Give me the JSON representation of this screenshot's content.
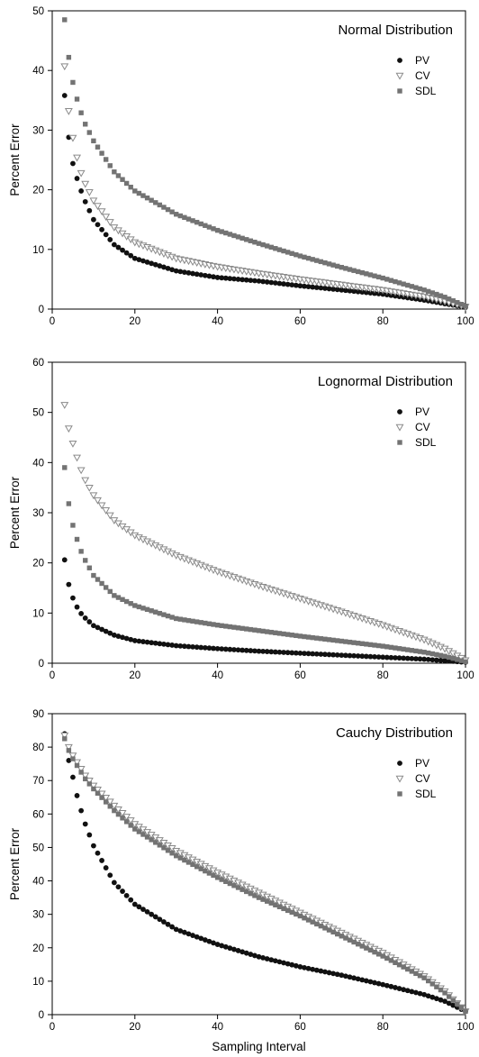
{
  "figure": {
    "xlabel": "Sampling Interval"
  },
  "legend_labels": [
    "PV",
    "CV",
    "SDL"
  ],
  "chart_data": [
    {
      "type": "scatter",
      "title": "Normal Distribution",
      "xlabel": "",
      "ylabel": "Percent Error",
      "xlim": [
        0,
        100
      ],
      "ylim": [
        0,
        50
      ],
      "x_ticks": [
        0,
        20,
        40,
        60,
        80,
        100
      ],
      "y_ticks": [
        0,
        10,
        20,
        30,
        40,
        50
      ],
      "legend_position": "top-right",
      "series": [
        {
          "name": "PV",
          "marker": "circle",
          "color": "#111111",
          "x": [
            3,
            4,
            5,
            6,
            7,
            8,
            10,
            15,
            20,
            30,
            40,
            50,
            60,
            70,
            80,
            90,
            95,
            100
          ],
          "y": [
            35.8,
            28.8,
            24.4,
            21.9,
            19.8,
            18.0,
            15.0,
            10.8,
            8.5,
            6.4,
            5.3,
            4.7,
            3.9,
            3.2,
            2.5,
            1.5,
            0.9,
            0.3
          ]
        },
        {
          "name": "CV",
          "marker": "triangle-down",
          "color": "#8a8a8a",
          "x": [
            3,
            4,
            5,
            6,
            7,
            8,
            10,
            15,
            20,
            30,
            40,
            50,
            60,
            70,
            80,
            90,
            95,
            100
          ],
          "y": [
            40.7,
            33.2,
            28.7,
            25.4,
            22.8,
            21.0,
            18.2,
            13.7,
            11.2,
            8.5,
            7.1,
            6.0,
            5.0,
            4.1,
            3.2,
            2.1,
            1.3,
            0.4
          ]
        },
        {
          "name": "SDL",
          "marker": "square",
          "color": "#737373",
          "x": [
            3,
            4,
            5,
            6,
            7,
            8,
            10,
            15,
            20,
            30,
            40,
            50,
            60,
            70,
            80,
            90,
            95,
            100
          ],
          "y": [
            48.5,
            42.2,
            38.0,
            35.2,
            32.9,
            31.0,
            28.2,
            23.0,
            19.8,
            15.9,
            13.2,
            11.0,
            8.9,
            7.0,
            5.2,
            3.2,
            2.0,
            0.5
          ]
        }
      ]
    },
    {
      "type": "scatter",
      "title": "Lognormal Distribution",
      "xlabel": "",
      "ylabel": "Percent Error",
      "xlim": [
        0,
        100
      ],
      "ylim": [
        0,
        60
      ],
      "x_ticks": [
        0,
        20,
        40,
        60,
        80,
        100
      ],
      "y_ticks": [
        0,
        10,
        20,
        30,
        40,
        50,
        60
      ],
      "legend_position": "top-right",
      "series": [
        {
          "name": "PV",
          "marker": "circle",
          "color": "#111111",
          "x": [
            3,
            4,
            5,
            6,
            7,
            8,
            10,
            15,
            20,
            30,
            40,
            50,
            60,
            70,
            80,
            90,
            95,
            100
          ],
          "y": [
            20.6,
            15.7,
            13.0,
            11.2,
            9.9,
            9.0,
            7.5,
            5.6,
            4.5,
            3.5,
            2.9,
            2.4,
            2.0,
            1.6,
            1.2,
            0.8,
            0.5,
            0.2
          ]
        },
        {
          "name": "CV",
          "marker": "triangle-down",
          "color": "#8a8a8a",
          "x": [
            3,
            4,
            5,
            6,
            7,
            8,
            10,
            15,
            20,
            30,
            40,
            50,
            60,
            70,
            80,
            90,
            95,
            100
          ],
          "y": [
            51.5,
            46.8,
            43.8,
            41.0,
            38.5,
            36.5,
            33.5,
            28.5,
            25.5,
            21.5,
            18.3,
            15.5,
            12.9,
            10.3,
            7.6,
            4.7,
            2.9,
            0.6
          ]
        },
        {
          "name": "SDL",
          "marker": "square",
          "color": "#737373",
          "x": [
            3,
            4,
            5,
            6,
            7,
            8,
            10,
            15,
            20,
            30,
            40,
            50,
            60,
            70,
            80,
            90,
            95,
            100
          ],
          "y": [
            39.0,
            31.8,
            27.5,
            24.7,
            22.3,
            20.5,
            17.5,
            13.5,
            11.5,
            8.9,
            7.6,
            6.5,
            5.4,
            4.4,
            3.4,
            2.2,
            1.4,
            0.3
          ]
        }
      ]
    },
    {
      "type": "scatter",
      "title": "Cauchy Distribution",
      "xlabel": "Sampling Interval",
      "ylabel": "Percent Error",
      "xlim": [
        0,
        100
      ],
      "ylim": [
        0,
        90
      ],
      "x_ticks": [
        0,
        20,
        40,
        60,
        80,
        100
      ],
      "y_ticks": [
        0,
        10,
        20,
        30,
        40,
        50,
        60,
        70,
        80,
        90
      ],
      "legend_position": "top-right",
      "series": [
        {
          "name": "PV",
          "marker": "circle",
          "color": "#111111",
          "x": [
            3,
            4,
            5,
            6,
            7,
            8,
            10,
            15,
            20,
            30,
            40,
            50,
            60,
            70,
            80,
            90,
            95,
            100
          ],
          "y": [
            84.0,
            76.0,
            71.0,
            65.5,
            61.0,
            57.0,
            50.5,
            39.5,
            33.0,
            25.5,
            21.0,
            17.3,
            14.3,
            11.8,
            9.0,
            6.0,
            4.0,
            1.0
          ]
        },
        {
          "name": "CV",
          "marker": "triangle-down",
          "color": "#8a8a8a",
          "x": [
            3,
            4,
            5,
            6,
            7,
            8,
            10,
            15,
            20,
            30,
            40,
            50,
            60,
            70,
            80,
            90,
            95,
            100
          ],
          "y": [
            83.5,
            80.0,
            77.5,
            75.5,
            73.5,
            71.5,
            68.5,
            62.5,
            57.0,
            49.0,
            42.5,
            36.5,
            30.5,
            24.5,
            18.5,
            11.5,
            7.0,
            1.0
          ]
        },
        {
          "name": "SDL",
          "marker": "square",
          "color": "#737373",
          "x": [
            3,
            4,
            5,
            6,
            7,
            8,
            10,
            15,
            20,
            30,
            40,
            50,
            60,
            70,
            80,
            90,
            95,
            100
          ],
          "y": [
            82.5,
            79.0,
            76.5,
            74.5,
            72.5,
            70.5,
            67.5,
            61.0,
            55.5,
            47.5,
            41.0,
            35.0,
            29.5,
            23.5,
            17.5,
            11.0,
            6.5,
            1.0
          ]
        }
      ]
    }
  ]
}
